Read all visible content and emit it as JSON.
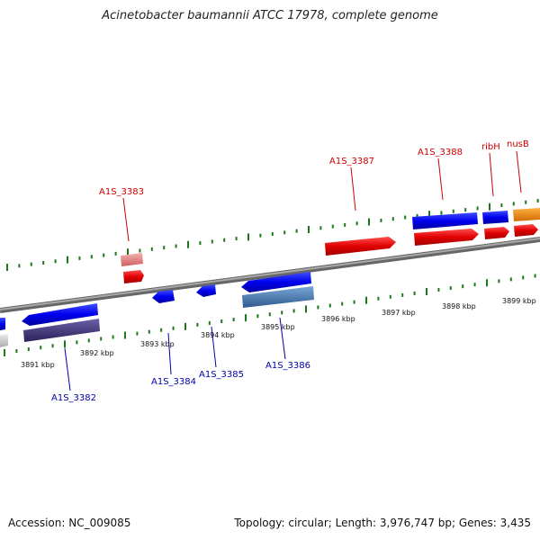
{
  "title": "Acinetobacter baumannii ATCC 17978, complete genome",
  "footer": {
    "accession": "Accession: NC_009085",
    "summary": "Topology: circular; Length: 3,976,747 bp; Genes: 3,435"
  },
  "colors": {
    "forward_gene": "#e00000",
    "forward_gene_light": "#e88080",
    "reverse_gene": "#0000ee",
    "reverse_gene_dark": "#3a3070",
    "reverse_gene_steel": "#4a7ab0",
    "orange_gene": "#f08000",
    "forward_label": "#cc0000",
    "reverse_label": "#0000aa",
    "tick": "#1a7a1a",
    "backbone": "#888888"
  },
  "scale_labels": [
    "3891 kbp",
    "3892 kbp",
    "3893 kbp",
    "3894 kbp",
    "3895 kbp",
    "3896 kbp",
    "3897 kbp",
    "3898 kbp",
    "3899 kbp"
  ],
  "forward_labels": [
    "A1S_3383",
    "A1S_3387",
    "A1S_3388",
    "ribH",
    "nusB"
  ],
  "reverse_labels": [
    "A1S_3382",
    "A1S_3384",
    "A1S_3385",
    "A1S_3386"
  ]
}
